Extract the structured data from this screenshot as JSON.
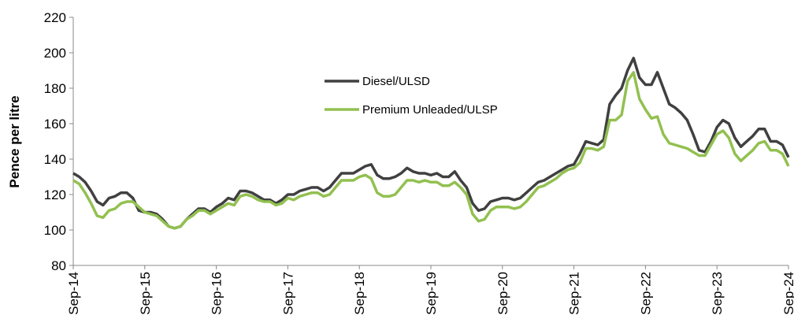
{
  "chart_data": {
    "type": "line",
    "y_label": "Pence per litre",
    "categories": [
      "Sep-14",
      null,
      null,
      null,
      null,
      null,
      null,
      null,
      null,
      null,
      null,
      null,
      "Sep-15",
      null,
      null,
      null,
      null,
      null,
      null,
      null,
      null,
      null,
      null,
      null,
      "Sep-16",
      null,
      null,
      null,
      null,
      null,
      null,
      null,
      null,
      null,
      null,
      null,
      "Sep-17",
      null,
      null,
      null,
      null,
      null,
      null,
      null,
      null,
      null,
      null,
      null,
      "Sep-18",
      null,
      null,
      null,
      null,
      null,
      null,
      null,
      null,
      null,
      null,
      null,
      "Sep-19",
      null,
      null,
      null,
      null,
      null,
      null,
      null,
      null,
      null,
      null,
      null,
      "Sep-20",
      null,
      null,
      null,
      null,
      null,
      null,
      null,
      null,
      null,
      null,
      null,
      "Sep-21",
      null,
      null,
      null,
      null,
      null,
      null,
      null,
      null,
      null,
      null,
      null,
      "Sep-22",
      null,
      null,
      null,
      null,
      null,
      null,
      null,
      null,
      null,
      null,
      null,
      "Sep-23",
      null,
      null,
      null,
      null,
      null,
      null,
      null,
      null,
      null,
      null,
      null,
      "Sep-24"
    ],
    "series": [
      {
        "name": "Diesel/ULSD",
        "color": "#404040",
        "values": [
          132,
          130,
          127,
          122,
          116,
          114,
          118,
          119,
          121,
          121,
          118,
          111,
          110,
          110,
          109,
          106,
          102,
          101,
          102,
          106,
          109,
          112,
          112,
          110,
          113,
          115,
          118,
          117,
          122,
          122,
          121,
          119,
          117,
          117,
          115,
          117,
          120,
          120,
          122,
          123,
          124,
          124,
          122,
          124,
          128,
          132,
          132,
          132,
          134,
          136,
          137,
          131,
          129,
          129,
          130,
          132,
          135,
          133,
          132,
          132,
          131,
          132,
          130,
          130,
          133,
          128,
          124,
          115,
          111,
          112,
          116,
          117,
          118,
          118,
          117,
          118,
          121,
          124,
          127,
          128,
          130,
          132,
          134,
          136,
          137,
          143,
          150,
          149,
          148,
          151,
          171,
          176,
          180,
          190,
          197,
          186,
          182,
          182,
          189,
          180,
          171,
          169,
          166,
          162,
          154,
          145,
          144,
          150,
          158,
          162,
          160,
          152,
          147,
          150,
          153,
          157,
          157,
          150,
          150,
          148,
          141
        ]
      },
      {
        "name": "Premium Unleaded/ULSP",
        "color": "#92c050",
        "values": [
          128,
          126,
          121,
          115,
          108,
          107,
          111,
          112,
          115,
          116,
          116,
          113,
          110,
          109,
          108,
          105,
          102,
          101,
          102,
          106,
          108,
          111,
          111,
          109,
          111,
          113,
          115,
          114,
          119,
          120,
          119,
          117,
          116,
          116,
          114,
          115,
          118,
          117,
          119,
          120,
          121,
          121,
          119,
          120,
          124,
          128,
          128,
          128,
          130,
          131,
          129,
          121,
          119,
          119,
          120,
          124,
          128,
          128,
          127,
          128,
          127,
          127,
          125,
          125,
          127,
          124,
          120,
          109,
          105,
          106,
          111,
          113,
          113,
          113,
          112,
          113,
          116,
          120,
          124,
          125,
          127,
          129,
          132,
          134,
          135,
          138,
          146,
          146,
          145,
          147,
          162,
          162,
          165,
          184,
          189,
          174,
          168,
          163,
          164,
          154,
          149,
          148,
          147,
          146,
          144,
          142,
          142,
          148,
          154,
          156,
          152,
          143,
          139,
          142,
          145,
          149,
          150,
          145,
          145,
          143,
          136
        ]
      }
    ],
    "ylim": [
      80,
      220
    ],
    "yticks": [
      80,
      100,
      120,
      140,
      160,
      180,
      200,
      220
    ],
    "legend": "inside",
    "grid": false
  }
}
